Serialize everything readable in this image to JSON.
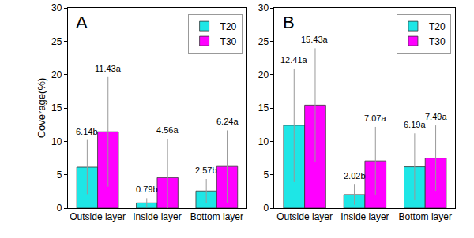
{
  "chart_data": [
    {
      "type": "bar",
      "title": "A",
      "y_label": "Coverage(%)",
      "categories": [
        "Outside layer",
        "Inside layer",
        "Bottom layer"
      ],
      "series": [
        {
          "name": "T20",
          "color": "#1ee6e6",
          "values": [
            6.14,
            0.79,
            2.57
          ],
          "errors": [
            4.06,
            0.7,
            1.8
          ],
          "value_labels": [
            "6.14b",
            "0.79b",
            "2.57b"
          ]
        },
        {
          "name": "T30",
          "color": "#ff00ff",
          "values": [
            11.43,
            4.56,
            6.24
          ],
          "errors": [
            8.2,
            5.8,
            5.4
          ],
          "value_labels": [
            "11.43a",
            "4.56a",
            "6.24a"
          ]
        }
      ],
      "ylim": [
        0,
        30
      ],
      "yticks": [
        0,
        5,
        10,
        15,
        20,
        25,
        30
      ],
      "grid": false,
      "legend": "top right",
      "data_labels": true
    },
    {
      "type": "bar",
      "title": "B",
      "categories": [
        "Outside layer",
        "Inside layer",
        "Bottom layer"
      ],
      "series": [
        {
          "name": "T20",
          "color": "#1ee6e6",
          "values": [
            12.41,
            2.02,
            6.19
          ],
          "errors": [
            8.5,
            1.5,
            5.0
          ],
          "value_labels": [
            "12.41a",
            "2.02b",
            "6.19a"
          ]
        },
        {
          "name": "T30",
          "color": "#ff00ff",
          "values": [
            15.43,
            7.07,
            7.49
          ],
          "errors": [
            8.5,
            5.1,
            4.9
          ],
          "value_labels": [
            "15.43a",
            "7.07a",
            "7.49a"
          ]
        }
      ],
      "ylim": [
        0,
        30
      ],
      "yticks": [
        0,
        5,
        10,
        15,
        20,
        25,
        30
      ],
      "grid": false,
      "legend": "top right",
      "data_labels": true
    }
  ]
}
